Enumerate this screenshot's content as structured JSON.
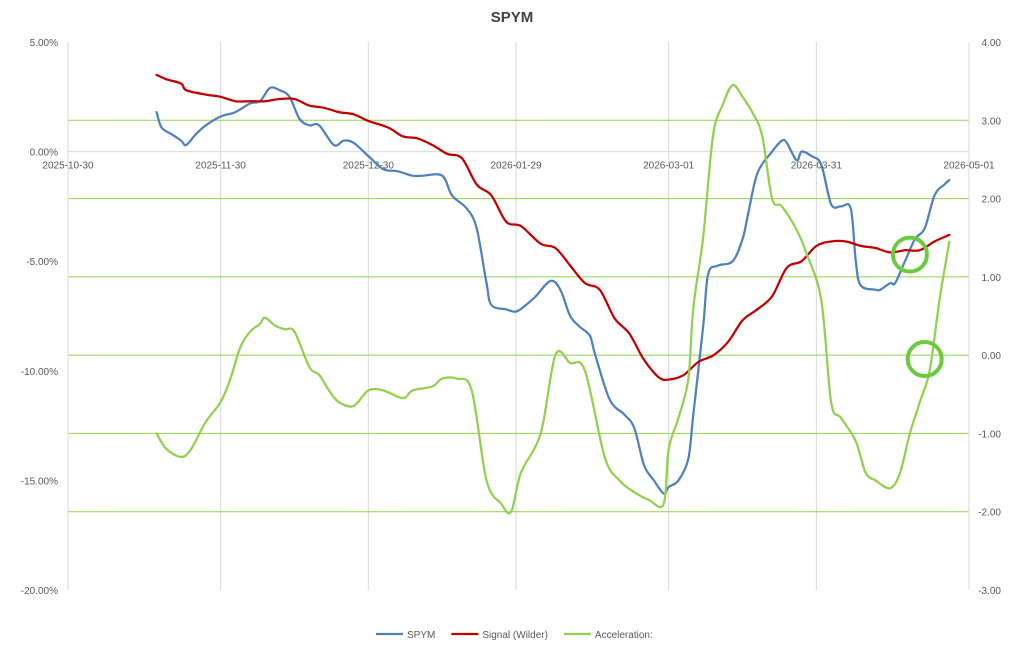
{
  "chart_data": {
    "type": "line",
    "title": "SPYM",
    "x_ticks": [
      "2025-10-30",
      "2025-11-30",
      "2025-12-30",
      "2026-01-29",
      "2026-03-01",
      "2026-03-31",
      "2026-05-01"
    ],
    "y_left": {
      "ticks": [
        "5.00%",
        "0.00%",
        "-5.00%",
        "-10.00%",
        "-15.00%",
        "-20.00%"
      ],
      "range": [
        -20,
        5
      ]
    },
    "y_right": {
      "ticks": [
        "4.00",
        "3.00",
        "2.00",
        "1.00",
        "0.00",
        "-1.00",
        "-2.00",
        "-3.00"
      ],
      "range": [
        -3,
        4
      ]
    },
    "grid": "horizontal at right-axis gridlines (green), vertical at date ticks",
    "legend_position": "bottom",
    "series": [
      {
        "name": "SPYM",
        "axis": "left",
        "color": "#4F81BD",
        "points": [
          [
            "2025-11-17",
            1.8
          ],
          [
            "2025-11-18",
            1.1
          ],
          [
            "2025-11-20",
            0.8
          ],
          [
            "2025-11-22",
            0.5
          ],
          [
            "2025-11-23",
            0.3
          ],
          [
            "2025-11-25",
            0.8
          ],
          [
            "2025-11-27",
            1.2
          ],
          [
            "2025-11-30",
            1.6
          ],
          [
            "2025-12-03",
            1.8
          ],
          [
            "2025-12-06",
            2.2
          ],
          [
            "2025-12-08",
            2.3
          ],
          [
            "2025-12-10",
            2.9
          ],
          [
            "2025-12-12",
            2.8
          ],
          [
            "2025-12-14",
            2.5
          ],
          [
            "2025-12-16",
            1.5
          ],
          [
            "2025-12-18",
            1.2
          ],
          [
            "2025-12-20",
            1.2
          ],
          [
            "2025-12-23",
            0.3
          ],
          [
            "2025-12-25",
            0.5
          ],
          [
            "2025-12-27",
            0.4
          ],
          [
            "2025-12-30",
            -0.2
          ],
          [
            "2026-01-02",
            -0.8
          ],
          [
            "2026-01-05",
            -0.9
          ],
          [
            "2026-01-08",
            -1.1
          ],
          [
            "2026-01-10",
            -1.1
          ],
          [
            "2026-01-14",
            -1.1
          ],
          [
            "2026-01-16",
            -2.0
          ],
          [
            "2026-01-19",
            -2.6
          ],
          [
            "2026-01-21",
            -3.5
          ],
          [
            "2026-01-23",
            -6.0
          ],
          [
            "2026-01-24",
            -7.0
          ],
          [
            "2026-01-27",
            -7.2
          ],
          [
            "2026-01-29",
            -7.3
          ],
          [
            "2026-01-31",
            -7.0
          ],
          [
            "2026-02-02",
            -6.6
          ],
          [
            "2026-02-05",
            -5.9
          ],
          [
            "2026-02-07",
            -6.3
          ],
          [
            "2026-02-09",
            -7.5
          ],
          [
            "2026-02-11",
            -8.0
          ],
          [
            "2026-02-13",
            -8.4
          ],
          [
            "2026-02-14",
            -9.2
          ],
          [
            "2026-02-17",
            -11.3
          ],
          [
            "2026-02-20",
            -12.0
          ],
          [
            "2026-02-22",
            -12.6
          ],
          [
            "2026-02-24",
            -14.3
          ],
          [
            "2026-02-26",
            -15.0
          ],
          [
            "2026-02-28",
            -15.6
          ],
          [
            "2026-03-01",
            -15.3
          ],
          [
            "2026-03-03",
            -15.0
          ],
          [
            "2026-03-05",
            -14.0
          ],
          [
            "2026-03-06",
            -12.0
          ],
          [
            "2026-03-08",
            -8.0
          ],
          [
            "2026-03-09",
            -5.6
          ],
          [
            "2026-03-11",
            -5.2
          ],
          [
            "2026-03-14",
            -5.0
          ],
          [
            "2026-03-16",
            -4.0
          ],
          [
            "2026-03-17",
            -3.0
          ],
          [
            "2026-03-19",
            -1.0
          ],
          [
            "2026-03-22",
            0.0
          ],
          [
            "2026-03-24",
            0.5
          ],
          [
            "2026-03-25",
            0.4
          ],
          [
            "2026-03-27",
            -0.4
          ],
          [
            "2026-03-28",
            0.0
          ],
          [
            "2026-03-30",
            -0.2
          ],
          [
            "2026-04-01",
            -0.6
          ],
          [
            "2026-04-03",
            -2.4
          ],
          [
            "2026-04-05",
            -2.5
          ],
          [
            "2026-04-07",
            -2.6
          ],
          [
            "2026-04-08",
            -5.0
          ],
          [
            "2026-04-09",
            -6.1
          ],
          [
            "2026-04-12",
            -6.3
          ],
          [
            "2026-04-13",
            -6.3
          ],
          [
            "2026-04-15",
            -6.0
          ],
          [
            "2026-04-16",
            -6.0
          ],
          [
            "2026-04-18",
            -5.0
          ],
          [
            "2026-04-20",
            -4.0
          ],
          [
            "2026-04-22",
            -3.5
          ],
          [
            "2026-04-24",
            -2.0
          ],
          [
            "2026-04-26",
            -1.5
          ],
          [
            "2026-04-27",
            -1.3
          ]
        ]
      },
      {
        "name": "Signal (Wilder)",
        "axis": "left",
        "color": "#C00000",
        "points": [
          [
            "2025-11-17",
            3.5
          ],
          [
            "2025-11-19",
            3.3
          ],
          [
            "2025-11-22",
            3.1
          ],
          [
            "2025-11-23",
            2.8
          ],
          [
            "2025-11-27",
            2.6
          ],
          [
            "2025-11-30",
            2.5
          ],
          [
            "2025-12-03",
            2.3
          ],
          [
            "2025-12-06",
            2.3
          ],
          [
            "2025-12-09",
            2.3
          ],
          [
            "2025-12-12",
            2.4
          ],
          [
            "2025-12-15",
            2.4
          ],
          [
            "2025-12-18",
            2.1
          ],
          [
            "2025-12-21",
            2.0
          ],
          [
            "2025-12-24",
            1.8
          ],
          [
            "2025-12-27",
            1.7
          ],
          [
            "2025-12-30",
            1.4
          ],
          [
            "2026-01-03",
            1.1
          ],
          [
            "2026-01-06",
            0.7
          ],
          [
            "2026-01-09",
            0.6
          ],
          [
            "2026-01-12",
            0.3
          ],
          [
            "2026-01-15",
            -0.1
          ],
          [
            "2026-01-18",
            -0.3
          ],
          [
            "2026-01-21",
            -1.5
          ],
          [
            "2026-01-24",
            -2.0
          ],
          [
            "2026-01-27",
            -3.2
          ],
          [
            "2026-01-30",
            -3.4
          ],
          [
            "2026-02-03",
            -4.2
          ],
          [
            "2026-02-06",
            -4.4
          ],
          [
            "2026-02-09",
            -5.2
          ],
          [
            "2026-02-12",
            -6.0
          ],
          [
            "2026-02-15",
            -6.3
          ],
          [
            "2026-02-18",
            -7.6
          ],
          [
            "2026-02-21",
            -8.3
          ],
          [
            "2026-02-24",
            -9.5
          ],
          [
            "2026-02-27",
            -10.3
          ],
          [
            "2026-03-01",
            -10.4
          ],
          [
            "2026-03-04",
            -10.2
          ],
          [
            "2026-03-07",
            -9.6
          ],
          [
            "2026-03-10",
            -9.3
          ],
          [
            "2026-03-13",
            -8.7
          ],
          [
            "2026-03-16",
            -7.7
          ],
          [
            "2026-03-19",
            -7.2
          ],
          [
            "2026-03-22",
            -6.6
          ],
          [
            "2026-03-25",
            -5.3
          ],
          [
            "2026-03-28",
            -5.0
          ],
          [
            "2026-03-31",
            -4.3
          ],
          [
            "2026-04-03",
            -4.1
          ],
          [
            "2026-04-06",
            -4.1
          ],
          [
            "2026-04-09",
            -4.3
          ],
          [
            "2026-04-12",
            -4.4
          ],
          [
            "2026-04-15",
            -4.6
          ],
          [
            "2026-04-18",
            -4.5
          ],
          [
            "2026-04-21",
            -4.5
          ],
          [
            "2026-04-24",
            -4.1
          ],
          [
            "2026-04-27",
            -3.8
          ]
        ]
      },
      {
        "name": "Acceleration:",
        "axis": "right",
        "color": "#92D050",
        "points": [
          [
            "2025-11-17",
            -1.0
          ],
          [
            "2025-11-19",
            -1.2
          ],
          [
            "2025-11-22",
            -1.3
          ],
          [
            "2025-11-24",
            -1.2
          ],
          [
            "2025-11-27",
            -0.85
          ],
          [
            "2025-11-30",
            -0.6
          ],
          [
            "2025-12-02",
            -0.3
          ],
          [
            "2025-12-04",
            0.1
          ],
          [
            "2025-12-06",
            0.3
          ],
          [
            "2025-12-08",
            0.4
          ],
          [
            "2025-12-09",
            0.48
          ],
          [
            "2025-12-11",
            0.38
          ],
          [
            "2025-12-13",
            0.33
          ],
          [
            "2025-12-15",
            0.3
          ],
          [
            "2025-12-18",
            -0.15
          ],
          [
            "2025-12-20",
            -0.25
          ],
          [
            "2025-12-22",
            -0.45
          ],
          [
            "2025-12-24",
            -0.6
          ],
          [
            "2025-12-27",
            -0.65
          ],
          [
            "2025-12-30",
            -0.45
          ],
          [
            "2026-01-02",
            -0.45
          ],
          [
            "2026-01-06",
            -0.55
          ],
          [
            "2026-01-08",
            -0.45
          ],
          [
            "2026-01-12",
            -0.4
          ],
          [
            "2026-01-14",
            -0.3
          ],
          [
            "2026-01-17",
            -0.3
          ],
          [
            "2026-01-20",
            -0.45
          ],
          [
            "2026-01-23",
            -1.6
          ],
          [
            "2026-01-26",
            -1.9
          ],
          [
            "2026-01-28",
            -2.0
          ],
          [
            "2026-01-30",
            -1.5
          ],
          [
            "2026-02-03",
            -1.0
          ],
          [
            "2026-02-06",
            0.0
          ],
          [
            "2026-02-09",
            -0.1
          ],
          [
            "2026-02-12",
            -0.2
          ],
          [
            "2026-02-16",
            -1.3
          ],
          [
            "2026-02-19",
            -1.6
          ],
          [
            "2026-02-22",
            -1.75
          ],
          [
            "2026-02-25",
            -1.85
          ],
          [
            "2026-02-28",
            -1.9
          ],
          [
            "2026-03-01",
            -1.2
          ],
          [
            "2026-03-03",
            -0.8
          ],
          [
            "2026-03-05",
            -0.3
          ],
          [
            "2026-03-06",
            0.6
          ],
          [
            "2026-03-08",
            1.5
          ],
          [
            "2026-03-10",
            2.8
          ],
          [
            "2026-03-12",
            3.2
          ],
          [
            "2026-03-14",
            3.45
          ],
          [
            "2026-03-16",
            3.3
          ],
          [
            "2026-03-18",
            3.1
          ],
          [
            "2026-03-20",
            2.8
          ],
          [
            "2026-03-22",
            2.0
          ],
          [
            "2026-03-24",
            1.9
          ],
          [
            "2026-03-27",
            1.6
          ],
          [
            "2026-03-29",
            1.3
          ],
          [
            "2026-04-01",
            0.7
          ],
          [
            "2026-04-03",
            -0.6
          ],
          [
            "2026-04-05",
            -0.8
          ],
          [
            "2026-04-08",
            -1.1
          ],
          [
            "2026-04-10",
            -1.5
          ],
          [
            "2026-04-12",
            -1.6
          ],
          [
            "2026-04-15",
            -1.7
          ],
          [
            "2026-04-17",
            -1.5
          ],
          [
            "2026-04-19",
            -1.0
          ],
          [
            "2026-04-21",
            -0.6
          ],
          [
            "2026-04-23",
            -0.2
          ],
          [
            "2026-04-25",
            0.7
          ],
          [
            "2026-04-27",
            1.45
          ]
        ]
      }
    ],
    "annotations": [
      {
        "shape": "circle",
        "color": "#6CCB3C",
        "at": [
          "2026-04-19",
          -4.7
        ],
        "axis": "left"
      },
      {
        "shape": "circle",
        "color": "#6CCB3C",
        "at": [
          "2026-04-22",
          -0.05
        ],
        "axis": "right"
      }
    ]
  }
}
